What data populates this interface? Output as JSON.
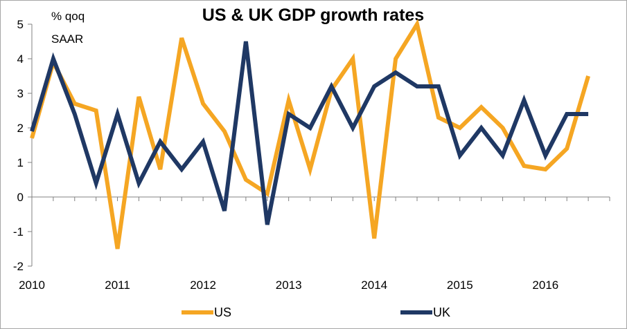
{
  "chart_data": {
    "type": "line",
    "title": "US & UK GDP growth rates",
    "unit_label": [
      "% qoq",
      "SAAR"
    ],
    "xlabel": "",
    "ylabel": "",
    "ylim": [
      -2,
      5
    ],
    "yticks": [
      "5",
      "4",
      "3",
      "2",
      "1",
      "0",
      "-1",
      "-2"
    ],
    "ytick_values": [
      5,
      4,
      3,
      2,
      1,
      0,
      -1,
      -2
    ],
    "xticks": [
      "2010",
      "2011",
      "2012",
      "2013",
      "2014",
      "2015",
      "2016"
    ],
    "xtick_values": [
      2010,
      2011,
      2012,
      2013,
      2014,
      2015,
      2016
    ],
    "xlim": [
      2010,
      2016.75
    ],
    "grid": false,
    "legend_position": "bottom",
    "series": [
      {
        "name": "US",
        "color": "#f5a623",
        "x": [
          2010,
          2010.25,
          2010.5,
          2010.75,
          2011,
          2011.25,
          2011.5,
          2011.75,
          2012,
          2012.25,
          2012.5,
          2012.75,
          2013,
          2013.25,
          2013.5,
          2013.75,
          2014,
          2014.25,
          2014.5,
          2014.75,
          2015,
          2015.25,
          2015.5,
          2015.75,
          2016,
          2016.25,
          2016.5
        ],
        "values": [
          1.7,
          3.9,
          2.7,
          2.5,
          -1.5,
          2.9,
          0.8,
          4.6,
          2.7,
          1.9,
          0.5,
          0.1,
          2.8,
          0.8,
          3.1,
          4.0,
          -1.2,
          4.0,
          5.0,
          2.3,
          2.0,
          2.6,
          2.0,
          0.9,
          0.8,
          1.4,
          3.5
        ]
      },
      {
        "name": "UK",
        "color": "#1f3864",
        "x": [
          2010,
          2010.25,
          2010.5,
          2010.75,
          2011,
          2011.25,
          2011.5,
          2011.75,
          2012,
          2012.25,
          2012.5,
          2012.75,
          2013,
          2013.25,
          2013.5,
          2013.75,
          2014,
          2014.25,
          2014.5,
          2014.75,
          2015,
          2015.25,
          2015.5,
          2015.75,
          2016,
          2016.25,
          2016.5
        ],
        "values": [
          1.9,
          4.0,
          2.4,
          0.4,
          2.4,
          0.4,
          1.6,
          0.8,
          1.6,
          -0.4,
          4.5,
          -0.8,
          2.4,
          2.0,
          3.2,
          2.0,
          3.2,
          3.6,
          3.2,
          3.2,
          1.2,
          2.0,
          1.2,
          2.8,
          1.2,
          2.4,
          2.4
        ]
      }
    ]
  }
}
